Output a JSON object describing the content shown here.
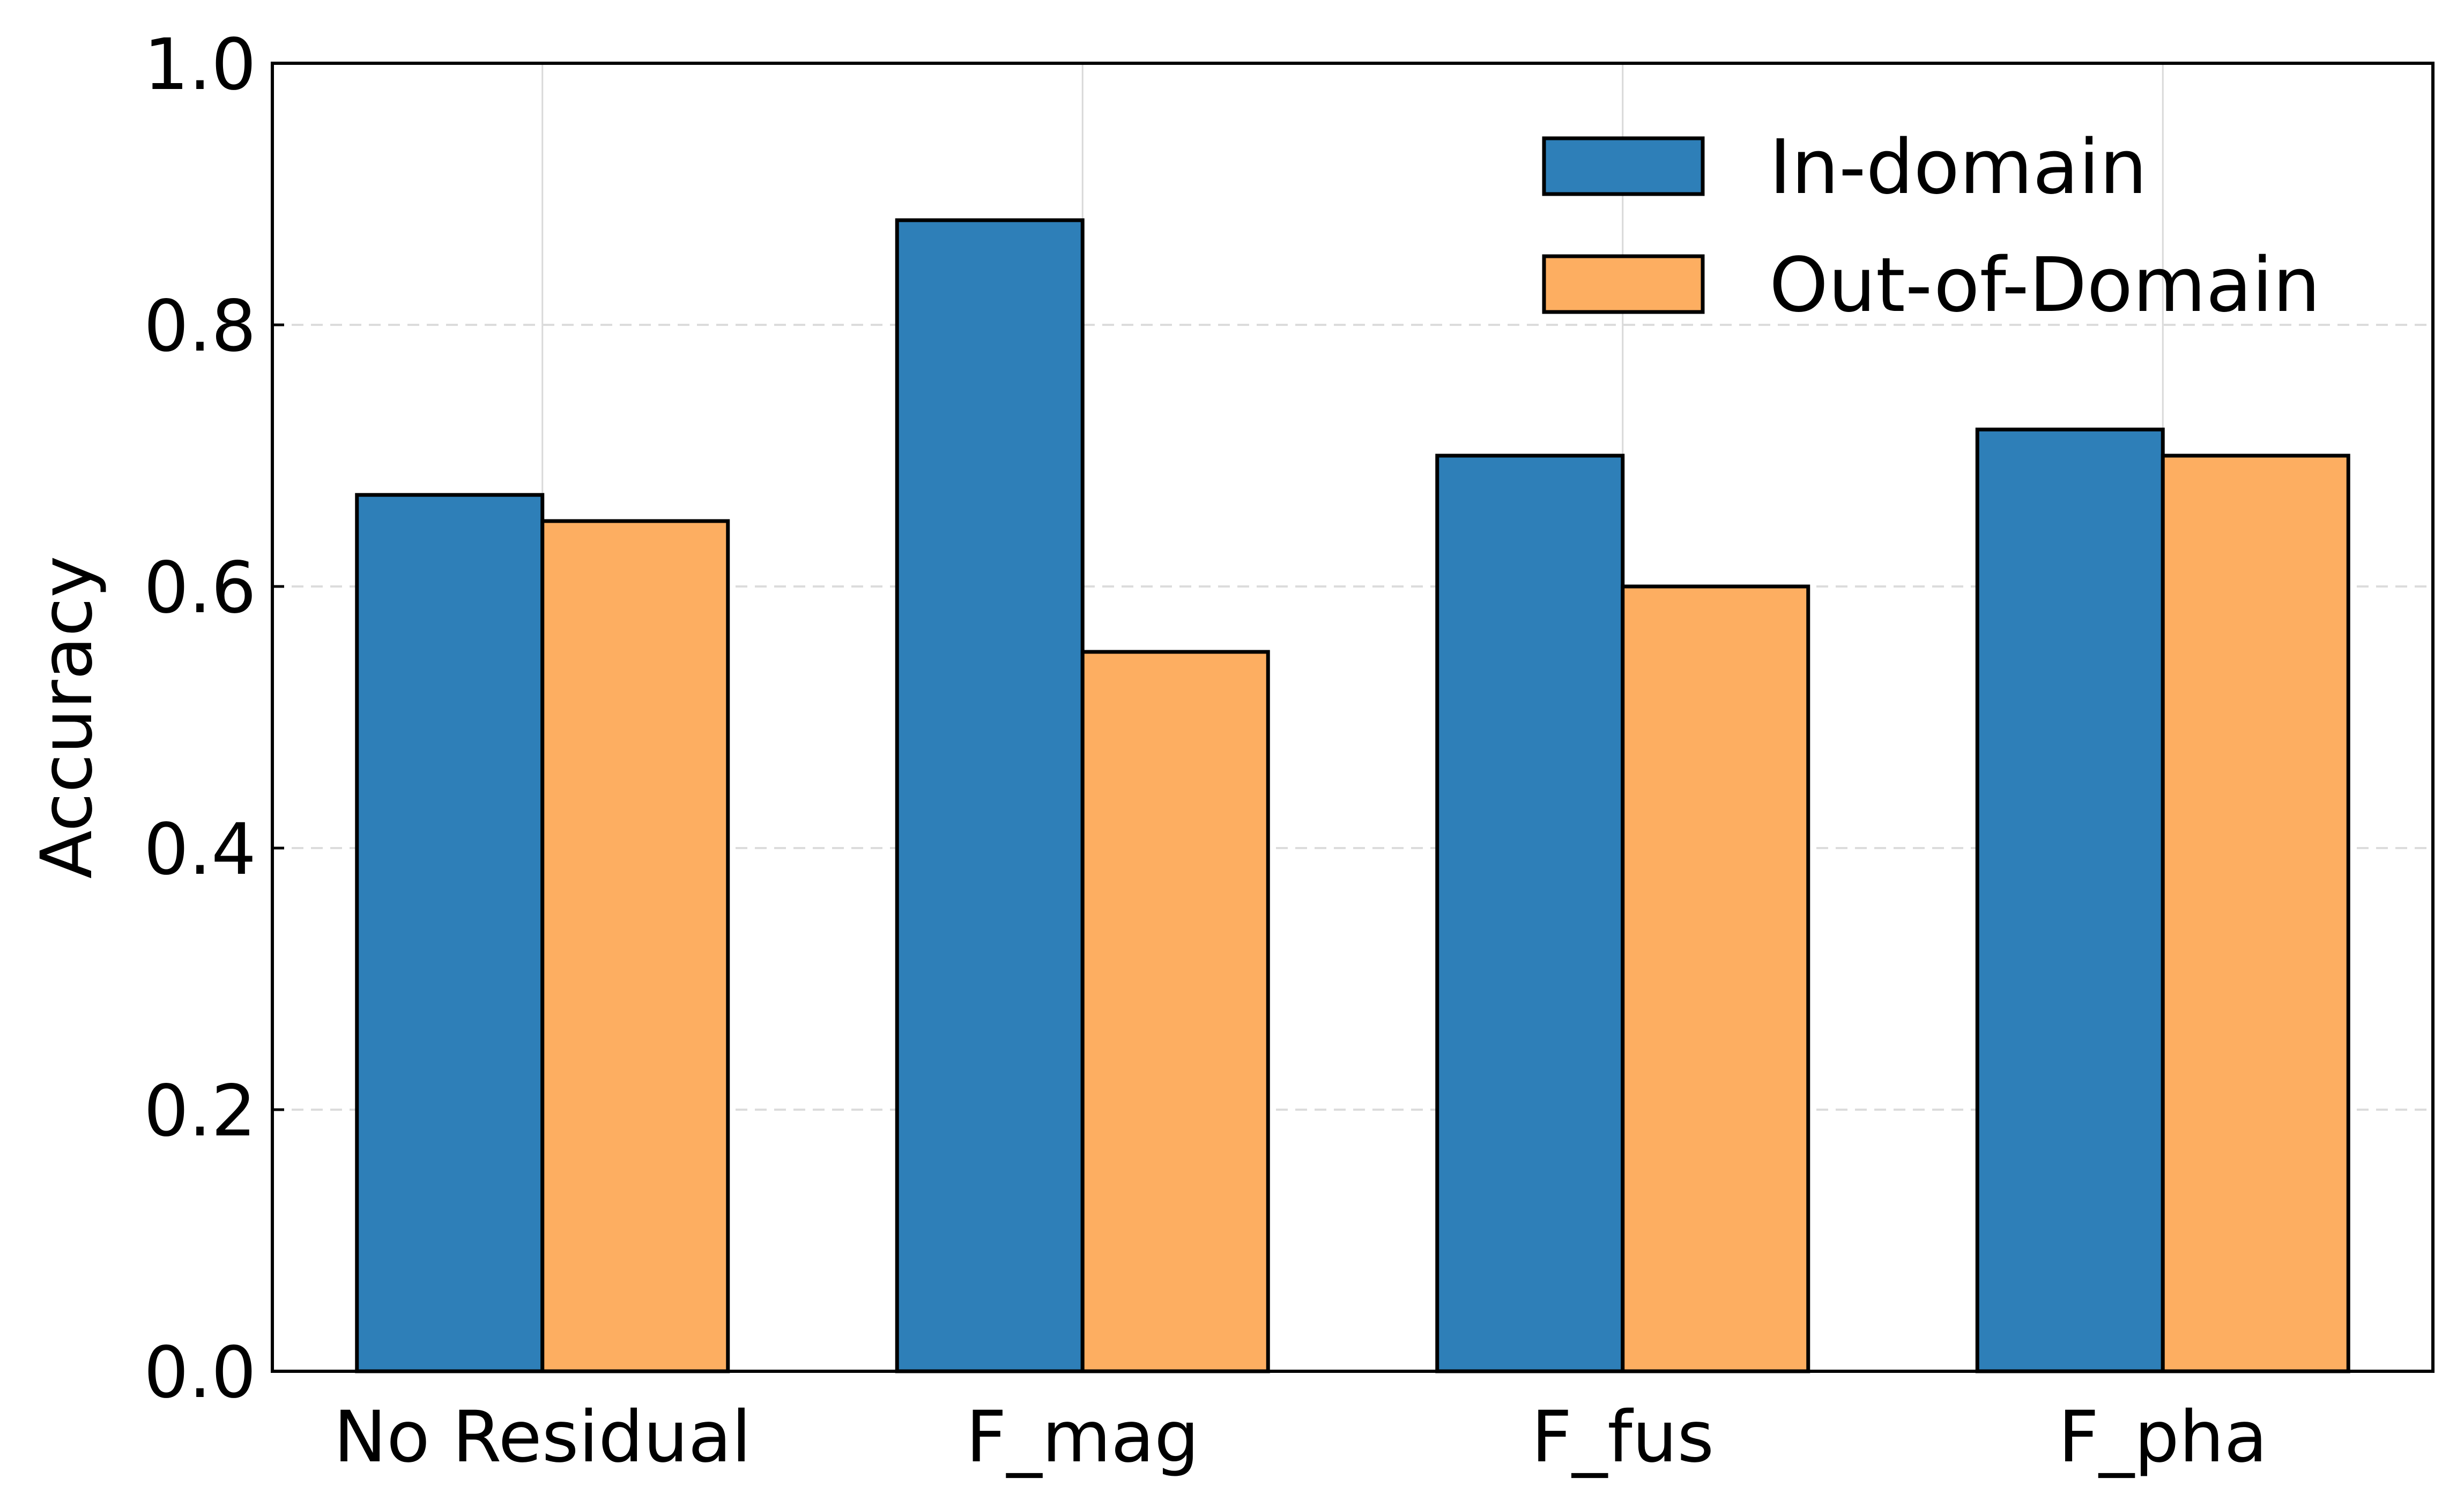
{
  "chart_data": {
    "type": "bar",
    "title": "",
    "xlabel": "",
    "ylabel": "Accuracy",
    "categories": [
      "No Residual",
      "F_mag",
      "F_fus",
      "F_pha"
    ],
    "series": [
      {
        "name": "In-domain",
        "color": "#2e7fb8",
        "values": [
          0.67,
          0.88,
          0.7,
          0.72
        ]
      },
      {
        "name": "Out-of-Domain",
        "color": "#fdae61",
        "values": [
          0.65,
          0.55,
          0.6,
          0.7
        ]
      }
    ],
    "ylim": [
      0,
      1.0
    ],
    "yticks": [
      "0.0",
      "0.2",
      "0.4",
      "0.6",
      "0.8",
      "1.0"
    ],
    "grid": {
      "y": "dashed",
      "x": "solid-light"
    },
    "legend": {
      "position": "top-right"
    }
  }
}
